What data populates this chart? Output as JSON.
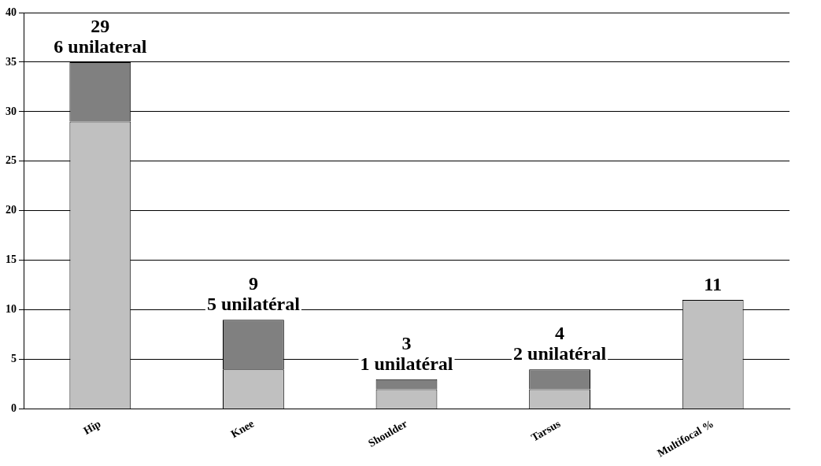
{
  "chart_data": {
    "type": "bar",
    "stacked": true,
    "categories": [
      "Hip",
      "Knee",
      "Shoulder",
      "Tarsus",
      "Multifocal %"
    ],
    "series": [
      {
        "color": "#c0c0c0",
        "values": [
          29,
          4,
          2,
          2,
          11
        ]
      },
      {
        "color": "#808080",
        "values": [
          6,
          5,
          1,
          2,
          0
        ],
        "value_labels": [
          "6 unilateral",
          "5 unilatéral",
          "1 unilatéral",
          "2 unilatéral",
          null
        ]
      }
    ],
    "annotations": [
      "29",
      "9",
      "3",
      "4",
      "11"
    ],
    "ylim": [
      0,
      40
    ],
    "yticks": [
      0,
      5,
      10,
      15,
      20,
      25,
      30,
      35,
      40
    ],
    "grid": "y",
    "legend": false
  }
}
